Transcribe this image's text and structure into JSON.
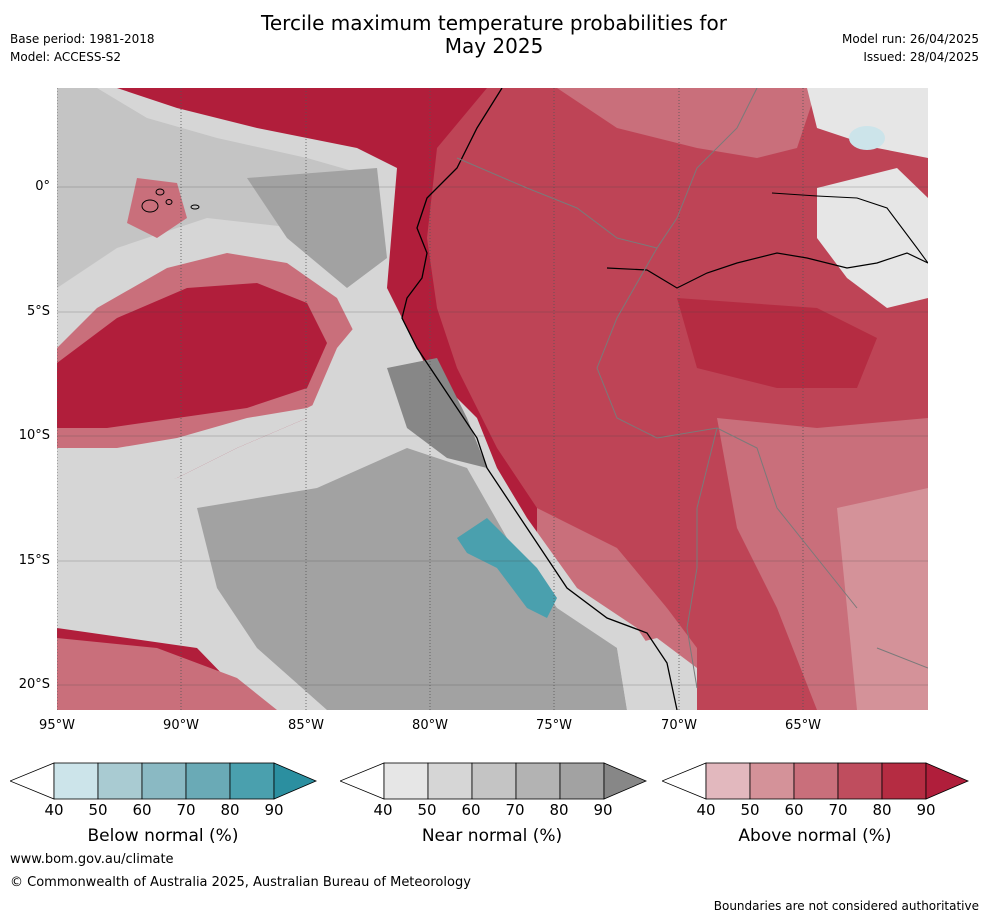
{
  "title_line1": "Tercile maximum temperature probabilities for",
  "title_line2": "May 2025",
  "base_period": "Base period: 1981-2018",
  "model": "Model: ACCESS-S2",
  "model_run": "Model run: 26/04/2025",
  "issued": "Issued: 28/04/2025",
  "lat_labels": [
    "0°",
    "5°S",
    "10°S",
    "15°S",
    "20°S"
  ],
  "lon_labels": [
    "95°W",
    "90°W",
    "85°W",
    "80°W",
    "75°W",
    "70°W",
    "65°W"
  ],
  "colorbars": [
    {
      "title": "Below normal (%)",
      "ticks": [
        "40",
        "50",
        "60",
        "70",
        "80",
        "90"
      ],
      "colors": [
        "#ffffff",
        "#cce4ea",
        "#a9cbd2",
        "#8ab9c3",
        "#6aaab6",
        "#4aa0ae",
        "#2b8fa0"
      ]
    },
    {
      "title": "Near normal (%)",
      "ticks": [
        "40",
        "50",
        "60",
        "70",
        "80",
        "90"
      ],
      "colors": [
        "#ffffff",
        "#e6e6e6",
        "#d6d6d6",
        "#c4c4c4",
        "#b3b3b3",
        "#a2a2a2",
        "#878787"
      ]
    },
    {
      "title": "Above normal (%)",
      "ticks": [
        "40",
        "50",
        "60",
        "70",
        "80",
        "90"
      ],
      "colors": [
        "#ffffff",
        "#e2b8be",
        "#d49299",
        "#c96f7b",
        "#bf4d5e",
        "#b52c42",
        "#b01e3b"
      ]
    }
  ],
  "footer_url": "www.bom.gov.au/climate",
  "footer_copyright": "© Commonwealth of Australia 2025, Australian Bureau of Meteorology",
  "disclaimer": "Boundaries are not considered authoritative"
}
